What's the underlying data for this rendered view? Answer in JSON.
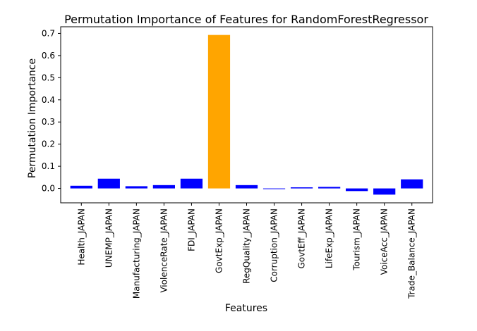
{
  "chart_data": {
    "type": "bar",
    "title": "Permutation Importance of Features for RandomForestRegressor",
    "xlabel": "Features",
    "ylabel": "Permutation Importance",
    "categories": [
      "Health_JAPAN",
      "UNEMP_JAPAN",
      "Manufacturing_JAPAN",
      "ViolenceRate_JAPAN",
      "FDI_JAPAN",
      "GovtExp_JAPAN",
      "RegQuality_JAPAN",
      "Corruption_JAPAN",
      "GovtEff_JAPAN",
      "LifeExp_JAPAN",
      "Tourism_JAPAN",
      "VoiceAcc_JAPAN",
      "Trade_Balance_JAPAN"
    ],
    "values": [
      0.012,
      0.044,
      0.01,
      0.015,
      0.044,
      0.693,
      0.015,
      -0.003,
      0.005,
      0.007,
      -0.012,
      -0.028,
      0.041
    ],
    "colors": [
      "#0000ff",
      "#0000ff",
      "#0000ff",
      "#0000ff",
      "#0000ff",
      "#ffa500",
      "#0000ff",
      "#0000ff",
      "#0000ff",
      "#0000ff",
      "#0000ff",
      "#0000ff",
      "#0000ff"
    ],
    "highlight_color": "#ffa500",
    "bar_color": "#0000ff",
    "ylim": [
      -0.065,
      0.73
    ],
    "yticks": [
      0.0,
      0.1,
      0.2,
      0.3,
      0.4,
      0.5,
      0.6,
      0.7
    ],
    "ytick_labels": [
      "0.0",
      "0.1",
      "0.2",
      "0.3",
      "0.4",
      "0.5",
      "0.6",
      "0.7"
    ],
    "grid": false,
    "legend": "none"
  }
}
